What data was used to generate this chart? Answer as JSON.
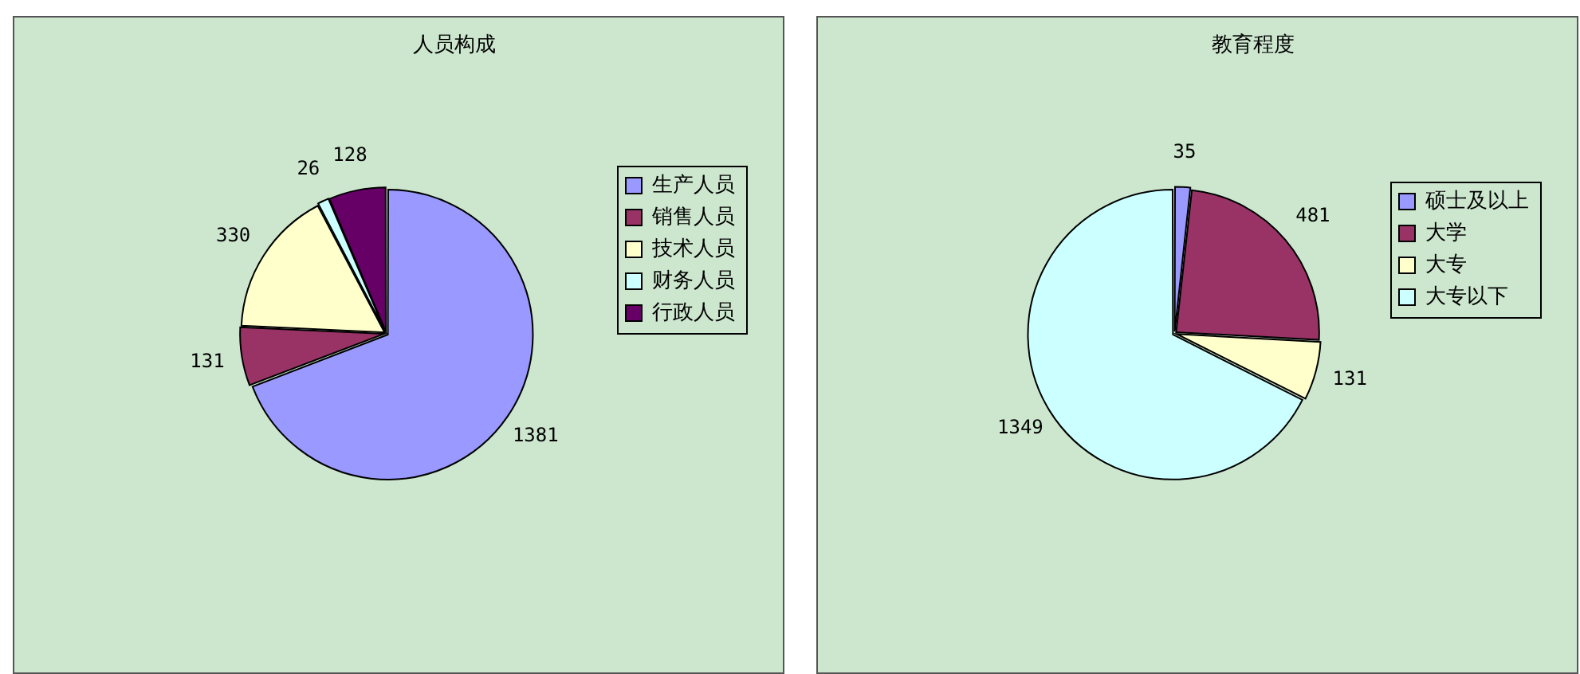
{
  "chart_data": [
    {
      "type": "pie",
      "title": "人员构成",
      "categories": [
        "生产人员",
        "销售人员",
        "技术人员",
        "财务人员",
        "行政人员"
      ],
      "values": [
        1381,
        131,
        330,
        26,
        128
      ],
      "colors": [
        "#9999ff",
        "#993366",
        "#ffffcc",
        "#ccffff",
        "#660066"
      ],
      "data_labels": true,
      "legend": "right"
    },
    {
      "type": "pie",
      "title": "教育程度",
      "categories": [
        "硕士及以上",
        "大学",
        "大专",
        "大专以下"
      ],
      "values": [
        35,
        481,
        131,
        1349
      ],
      "colors": [
        "#9999ff",
        "#993366",
        "#ffffcc",
        "#ccffff"
      ],
      "data_labels": true,
      "legend": "right"
    }
  ]
}
